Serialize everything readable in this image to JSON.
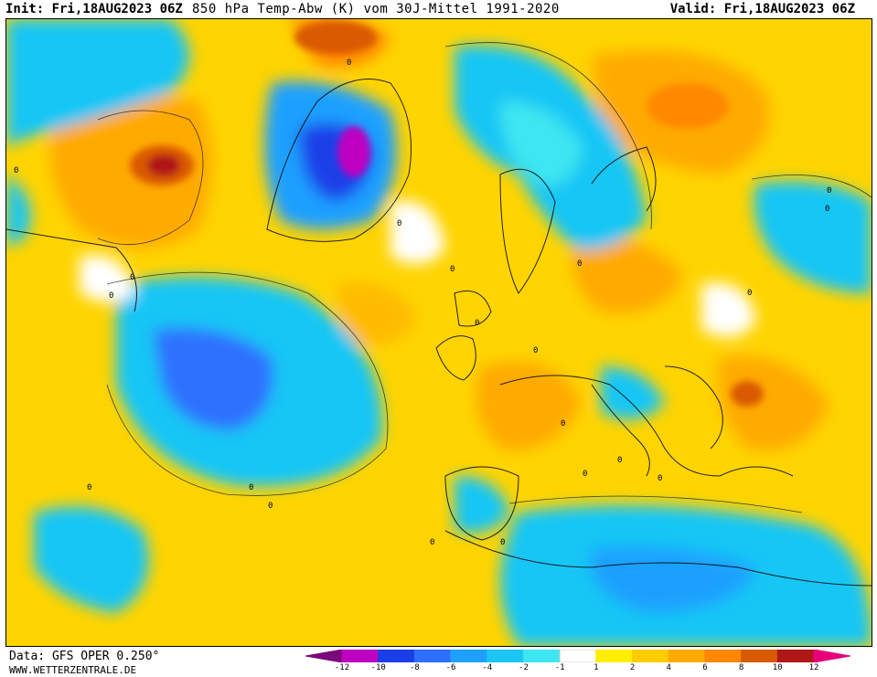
{
  "header": {
    "init": "Init: Fri,18AUG2023 06Z",
    "title": "850 hPa Temp-Abw (K) vom 30J-Mittel 1991-2020",
    "valid": "Valid: Fri,18AUG2023 06Z"
  },
  "footer": {
    "data_source": "Data: GFS OPER 0.250°",
    "website": "WWW.WETTERZENTRALE.DE"
  },
  "legend": {
    "labels": [
      "-12",
      "-10",
      "-8",
      "-6",
      "-4",
      "-2",
      "-1",
      "1",
      "2",
      "4",
      "6",
      "8",
      "10",
      "12"
    ],
    "colors": [
      "#7a0a7a",
      "#c000c0",
      "#1a3fe8",
      "#2f6fff",
      "#1fa0ff",
      "#19c6f5",
      "#3ee6f0",
      "#ffffff",
      "#ffee00",
      "#ffcc00",
      "#ffaa00",
      "#ff8800",
      "#d95a00",
      "#b01818",
      "#e6007a"
    ]
  },
  "contour_labels": [
    "0",
    "0",
    "0",
    "0",
    "0",
    "0",
    "0",
    "0",
    "0",
    "0",
    "0",
    "0",
    "0",
    "0",
    "0",
    "0",
    "0",
    "0",
    "0",
    "0",
    "0"
  ]
}
